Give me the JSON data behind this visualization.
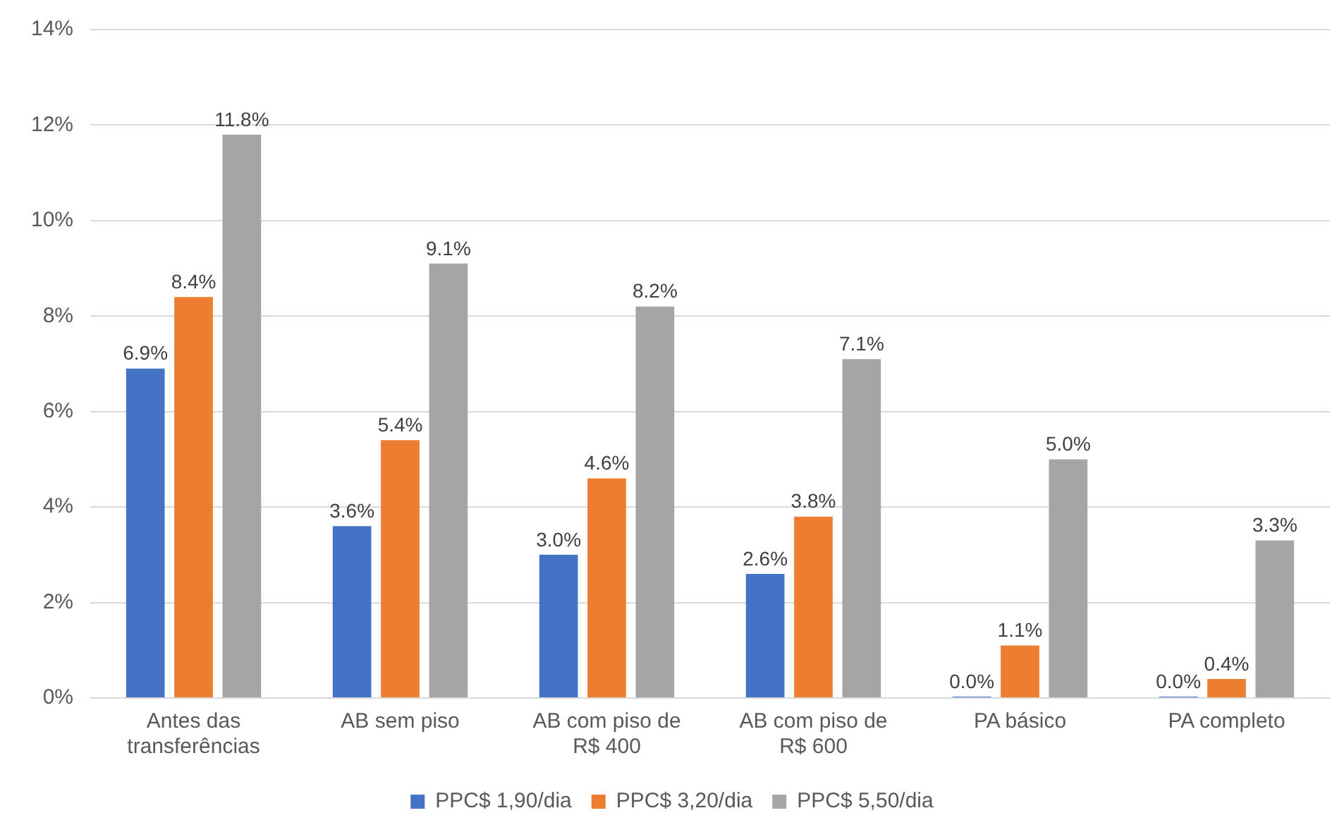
{
  "chart_data": {
    "type": "bar",
    "categories": [
      "Antes das transferências",
      "AB sem piso",
      "AB com piso de R$ 400",
      "AB com piso de R$ 600",
      "PA básico",
      "PA completo"
    ],
    "series": [
      {
        "name": "PPC$ 1,90/dia",
        "color": "#4472c4",
        "values": [
          6.9,
          3.6,
          3.0,
          2.6,
          0.0,
          0.0
        ],
        "value_labels": [
          "6.9%",
          "3.6%",
          "3.0%",
          "2.6%",
          "0.0%",
          "0.0%"
        ]
      },
      {
        "name": "PPC$ 3,20/dia",
        "color": "#ed7d31",
        "values": [
          8.4,
          5.4,
          4.6,
          3.8,
          1.1,
          0.4
        ],
        "value_labels": [
          "8.4%",
          "5.4%",
          "4.6%",
          "3.8%",
          "1.1%",
          "0.4%"
        ]
      },
      {
        "name": "PPC$ 5,50/dia",
        "color": "#a5a5a5",
        "values": [
          11.8,
          9.1,
          8.2,
          7.1,
          5.0,
          3.3
        ],
        "value_labels": [
          "11.8%",
          "9.1%",
          "8.2%",
          "7.1%",
          "5.0%",
          "3.3%"
        ]
      }
    ],
    "ylim": [
      0,
      14
    ],
    "yticks": [
      {
        "value": 0,
        "label": "0%"
      },
      {
        "value": 2,
        "label": "2%"
      },
      {
        "value": 4,
        "label": "4%"
      },
      {
        "value": 6,
        "label": "6%"
      },
      {
        "value": 8,
        "label": "8%"
      },
      {
        "value": 10,
        "label": "10%"
      },
      {
        "value": 12,
        "label": "12%"
      },
      {
        "value": 14,
        "label": "14%"
      }
    ],
    "grid": "y",
    "legend": "bottom"
  }
}
